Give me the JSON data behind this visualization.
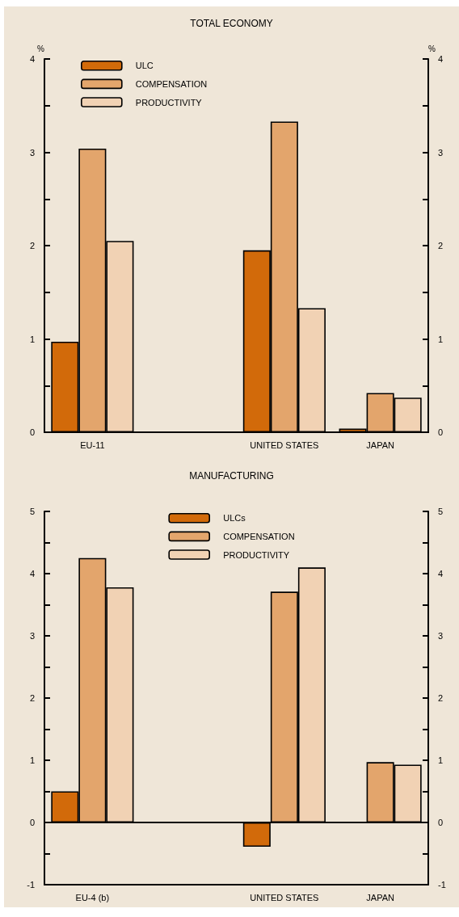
{
  "chart_data": [
    {
      "type": "bar",
      "title": "TOTAL ECONOMY",
      "ylabel": "%",
      "y2label": "%",
      "categories": [
        "EU-11",
        null,
        "UNITED STATES",
        "JAPAN"
      ],
      "series": [
        {
          "name": "ULC",
          "color": "#d26a0a",
          "values": [
            0.97,
            null,
            1.95,
            0.04
          ]
        },
        {
          "name": "COMPENSATION",
          "color": "#e3a56c",
          "values": [
            3.04,
            null,
            3.33,
            0.42
          ]
        },
        {
          "name": "PRODUCTIVITY",
          "color": "#f1d2b4",
          "values": [
            2.05,
            null,
            1.33,
            0.37
          ]
        }
      ],
      "ylim": [
        0,
        4
      ],
      "yticks": [
        0,
        {
          "value": 0.5,
          "label": null
        },
        1,
        {
          "value": 1.5,
          "label": null
        },
        2,
        {
          "value": 2.5,
          "label": null
        },
        3,
        {
          "value": 3.5,
          "label": null
        },
        4
      ],
      "y2lim": [
        0,
        4
      ],
      "y2ticks": [
        0,
        {
          "value": 0.5,
          "label": null
        },
        1,
        {
          "value": 1.5,
          "label": null
        },
        2,
        {
          "value": 2.5,
          "label": null
        },
        3,
        {
          "value": 3.5,
          "label": null
        },
        4
      ],
      "legend": "top left"
    },
    {
      "type": "bar",
      "title": "MANUFACTURING",
      "categories": [
        "EU-4 (b)",
        null,
        "UNITED STATES",
        "JAPAN"
      ],
      "series": [
        {
          "name": "ULCs",
          "color": "#d26a0a",
          "values": [
            0.5,
            null,
            -0.39,
            null
          ]
        },
        {
          "name": "COMPENSATION",
          "color": "#e3a56c",
          "values": [
            4.25,
            null,
            3.71,
            0.97
          ]
        },
        {
          "name": "PRODUCTIVITY",
          "color": "#f1d2b4",
          "values": [
            3.78,
            null,
            4.1,
            0.93
          ]
        }
      ],
      "ylim": [
        -1,
        5
      ],
      "yticks": [
        -1,
        {
          "value": -0.5,
          "label": null
        },
        0,
        {
          "value": 0.5,
          "label": null
        },
        1,
        {
          "value": 1.5,
          "label": null
        },
        2,
        {
          "value": 2.5,
          "label": null
        },
        3,
        {
          "value": 3.5,
          "label": null
        },
        4,
        {
          "value": 4.5,
          "label": null
        },
        5
      ],
      "y2lim": [
        -1,
        5
      ],
      "y2ticks": [
        -1,
        {
          "value": -0.5,
          "label": null
        },
        0,
        {
          "value": 0.5,
          "label": null
        },
        1,
        {
          "value": 1.5,
          "label": null
        },
        2,
        {
          "value": 2.5,
          "label": null
        },
        3,
        {
          "value": 3.5,
          "label": null
        },
        4,
        {
          "value": 4.5,
          "label": null
        },
        5
      ],
      "legend": "top"
    }
  ]
}
